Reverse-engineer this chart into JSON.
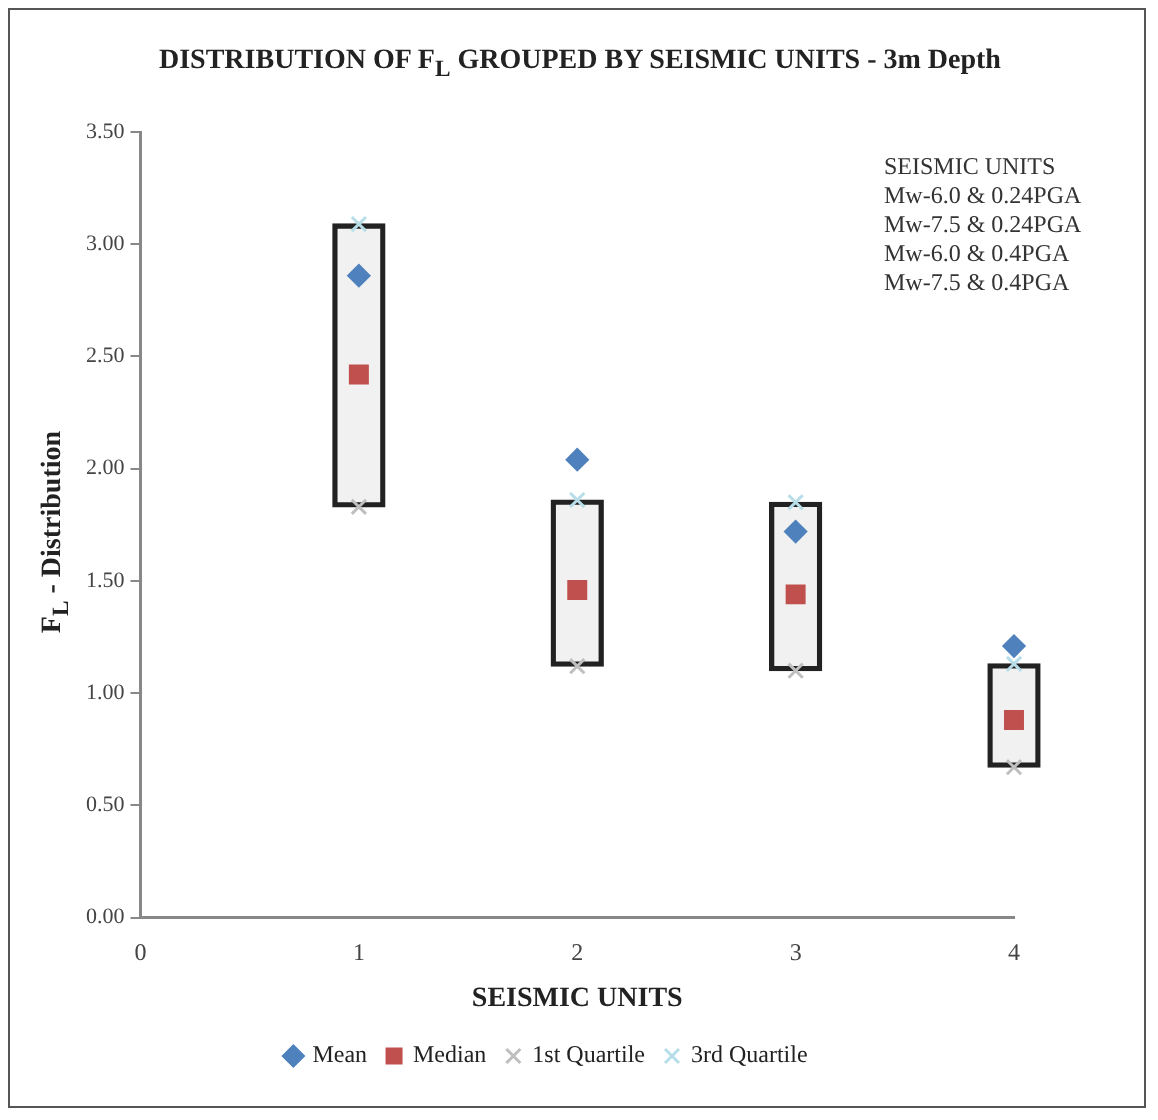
{
  "chart_data": {
    "type": "scatter",
    "title": "DISTRIBUTION OF F$_{L}$ GROUPED BY SEISMIC UNITS - 3m Depth",
    "xlabel": "SEISMIC UNITS",
    "ylabel": "F$_{L}$ - Distribution",
    "x": [
      1,
      2,
      3,
      4
    ],
    "series": [
      {
        "type": "bar",
        "color": "#222222",
        "base": [
          1.83,
          1.12,
          1.1,
          0.67
        ],
        "values": [
          1.26,
          0.74,
          0.75,
          0.46
        ]
      },
      {
        "name": "Mean",
        "color": "#4f81bd",
        "marker": "diamond",
        "values": [
          2.86,
          2.04,
          1.72,
          1.21
        ]
      },
      {
        "name": "Median",
        "color": "#c0504d",
        "marker": "square",
        "values": [
          2.42,
          1.46,
          1.44,
          0.88
        ]
      },
      {
        "name": "1st Quartile",
        "color": "#bfbfbf",
        "marker": "cross",
        "values": [
          1.83,
          1.12,
          1.1,
          0.67
        ]
      },
      {
        "name": "3rd Quartile",
        "color": "#b7dee8",
        "marker": "cross",
        "values": [
          3.09,
          1.86,
          1.85,
          1.13
        ]
      }
    ],
    "xlim": [
      0,
      4
    ],
    "xticks": [
      0,
      1,
      2,
      3,
      4
    ],
    "ylim": [
      0,
      3.5
    ],
    "yticks": [
      {
        "value": 0,
        "label": "0.00"
      },
      {
        "value": 0.5,
        "label": "0.50"
      },
      {
        "value": 1,
        "label": "1.00"
      },
      {
        "value": 1.5,
        "label": "1.50"
      },
      {
        "value": 2,
        "label": "2.00"
      },
      {
        "value": 2.5,
        "label": "2.50"
      },
      {
        "value": 3,
        "label": "3.00"
      },
      {
        "value": 3.5,
        "label": "3.50"
      }
    ],
    "grid": false,
    "legend": "bottom",
    "annotations": [
      "SEISMIC UNITS",
      "Mw-6.0 & 0.24PGA",
      "Mw-7.5 & 0.24PGA",
      "Mw-6.0 & 0.4PGA",
      "Mw-7.5 & 0.4PGA"
    ]
  }
}
